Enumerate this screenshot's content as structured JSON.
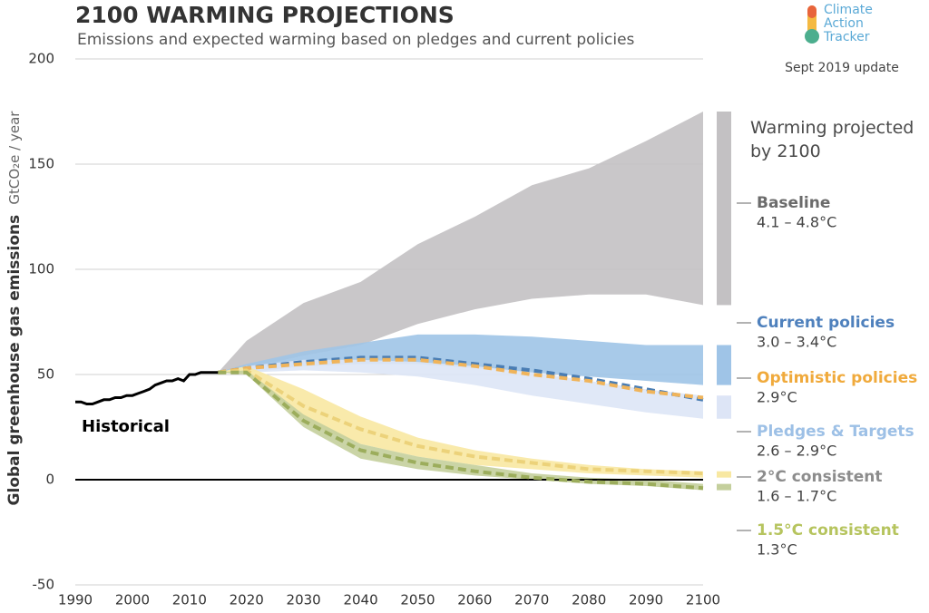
{
  "chart_data": {
    "type": "area",
    "title": "2100 WARMING PROJECTIONS",
    "subtitle": "Emissions and expected warming based on pledges and current policies",
    "y_label": "Global greenhouse gas emissions",
    "y_unit": "GtCO₂e / year",
    "logo": "Climate Action Tracker",
    "date": "Sept 2019 update",
    "annotation": "Warming projected by 2100",
    "xlim": [
      1990,
      2100
    ],
    "xticks": [
      1990,
      2000,
      2010,
      2020,
      2030,
      2040,
      2050,
      2060,
      2070,
      2080,
      2090,
      2100
    ],
    "ylim": [
      -50,
      200
    ],
    "yticks": [
      -50,
      0,
      50,
      100,
      150,
      200
    ],
    "grid": true,
    "zero_line": true,
    "historical": {
      "name": "Historical",
      "color": "#000000",
      "x": [
        1990,
        1991,
        1992,
        1993,
        1994,
        1995,
        1996,
        1997,
        1998,
        1999,
        2000,
        2001,
        2002,
        2003,
        2004,
        2005,
        2006,
        2007,
        2008,
        2009,
        2010,
        2011,
        2012,
        2013,
        2014,
        2015
      ],
      "values": [
        37,
        37,
        36,
        36,
        37,
        38,
        38,
        39,
        39,
        40,
        40,
        41,
        42,
        43,
        45,
        46,
        47,
        47,
        48,
        47,
        50,
        50,
        51,
        51,
        51,
        51
      ]
    },
    "x": [
      2015,
      2020,
      2030,
      2040,
      2050,
      2060,
      2070,
      2080,
      2090,
      2100
    ],
    "series": [
      {
        "name": "Baseline",
        "range": "4.1 – 4.8°C",
        "color": "#c3c1c3",
        "label_color": "#6b6b6b",
        "lower": [
          51,
          53,
          59,
          64,
          74,
          81,
          86,
          88,
          88,
          83
        ],
        "upper": [
          51,
          66,
          84,
          94,
          112,
          125,
          140,
          148,
          161,
          175
        ]
      },
      {
        "name": "Current policies",
        "range": "3.0 – 3.4°C",
        "color": "#9fc4e7",
        "line_color": "#4a7db3",
        "label_color": "#4f81bd",
        "lower": [
          51,
          51,
          54,
          55,
          55,
          53,
          51,
          49,
          47,
          45
        ],
        "upper": [
          51,
          55,
          61,
          65,
          69,
          69,
          68,
          66,
          64,
          64
        ],
        "median": [
          51,
          53,
          56,
          58,
          58,
          55,
          52,
          48,
          43,
          38
        ]
      },
      {
        "name": "Optimistic policies",
        "range": "2.9°C",
        "color": "#f2b04a",
        "line_color": "#f0b45a",
        "label_color": "#f0aa3c",
        "median": [
          51,
          53,
          55,
          57,
          57,
          54,
          50,
          47,
          42,
          39
        ]
      },
      {
        "name": "Pledges & Targets",
        "range": "2.6 – 2.9°C",
        "color": "#dde5f6",
        "label_color": "#9dc0e6",
        "lower": [
          51,
          51,
          52,
          51,
          49,
          45,
          40,
          36,
          32,
          29
        ],
        "upper": [
          51,
          54,
          57,
          57,
          56,
          54,
          51,
          47,
          43,
          40
        ]
      },
      {
        "name": "2°C consistent",
        "range": "1.6 – 1.7°C",
        "color": "#f8e8a2",
        "line_color": "#ecd27a",
        "label_color": "#8c8c8c",
        "lower": [
          51,
          50,
          27,
          17,
          11,
          7,
          5,
          3,
          2,
          1
        ],
        "upper": [
          51,
          54,
          43,
          30,
          20,
          14,
          10,
          7,
          5,
          4
        ],
        "median": [
          51,
          52,
          35,
          24,
          16,
          11,
          8,
          5,
          4,
          3
        ]
      },
      {
        "name": "1.5°C consistent",
        "range": "1.3°C",
        "color": "#c4cf9c",
        "line_color": "#9cad5c",
        "label_color": "#b6c45e",
        "lower": [
          51,
          50,
          25,
          10,
          5,
          2,
          0,
          -2,
          -3,
          -5
        ],
        "upper": [
          51,
          52,
          31,
          17,
          11,
          7,
          3,
          1,
          0,
          -2
        ],
        "median": [
          51,
          51,
          28,
          14,
          8,
          4,
          1,
          -1,
          -2,
          -4
        ]
      }
    ]
  }
}
